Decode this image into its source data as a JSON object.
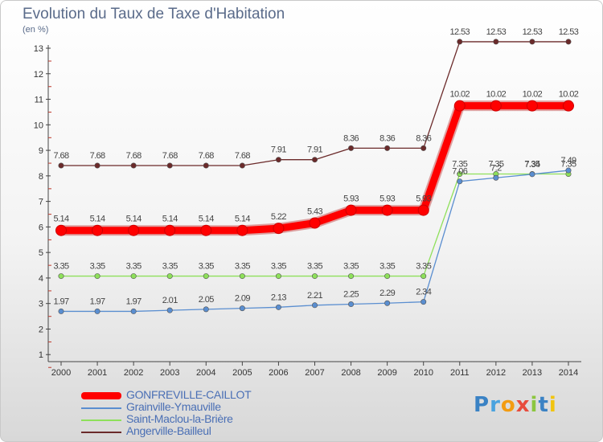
{
  "header": {
    "title": "Evolution du Taux de Taxe d'Habitation",
    "unit": "(en %)"
  },
  "logo": {
    "text": "Proxiti"
  },
  "chart_data": {
    "type": "line",
    "categories": [
      "2000",
      "2001",
      "2002",
      "2003",
      "2004",
      "2005",
      "2006",
      "2007",
      "2008",
      "2009",
      "2010",
      "2011",
      "2012",
      "2013",
      "2014"
    ],
    "ylim": [
      0,
      13
    ],
    "yticks": [
      "1",
      "2",
      "3",
      "4",
      "5",
      "6",
      "7",
      "8",
      "9",
      "10",
      "11",
      "12",
      "13"
    ],
    "grid": false,
    "legend_position": "bottom-left",
    "series": [
      {
        "name": "Angerville-Bailleul",
        "color": "#6b2a2a",
        "values": [
          7.68,
          7.68,
          7.68,
          7.68,
          7.68,
          7.68,
          7.91,
          7.91,
          8.36,
          8.36,
          8.36,
          12.53,
          12.53,
          12.53,
          12.53
        ],
        "labels": [
          "7.68",
          "7.68",
          "7.68",
          "7.68",
          "7.68",
          "7.68",
          "7.91",
          "7.91",
          "8.36",
          "8.36",
          "8.36",
          "12.53",
          "12.53",
          "12.53",
          "12.53"
        ]
      },
      {
        "name": "Saint-Maclou-la-Brière",
        "color": "#8ee05a",
        "values": [
          3.35,
          3.35,
          3.35,
          3.35,
          3.35,
          3.35,
          3.35,
          3.35,
          3.35,
          3.35,
          3.35,
          7.35,
          7.35,
          7.35,
          7.35
        ],
        "labels": [
          "3.35",
          "3.35",
          "3.35",
          "3.35",
          "3.35",
          "3.35",
          "3.35",
          "3.35",
          "3.35",
          "3.35",
          "3.35",
          "7.35",
          "7.35",
          "7.35",
          "7.35"
        ]
      },
      {
        "name": "Grainville-Ymauville",
        "color": "#5a8ed0",
        "values": [
          1.97,
          1.97,
          1.97,
          2.01,
          2.05,
          2.09,
          2.13,
          2.21,
          2.25,
          2.29,
          2.34,
          7.06,
          7.2,
          7.34,
          7.49
        ],
        "labels": [
          "1.97",
          "1.97",
          "1.97",
          "2.01",
          "2.05",
          "2.09",
          "2.13",
          "2.21",
          "2.25",
          "2.29",
          "2.34",
          "7.06",
          "7.2",
          "7.34",
          "7.49"
        ]
      },
      {
        "name": "GONFREVILLE-CAILLOT",
        "color": "#ff0000",
        "values": [
          5.14,
          5.14,
          5.14,
          5.14,
          5.14,
          5.14,
          5.22,
          5.43,
          5.93,
          5.93,
          5.93,
          10.02,
          10.02,
          10.02,
          10.02
        ],
        "labels": [
          "5.14",
          "5.14",
          "5.14",
          "5.14",
          "5.14",
          "5.14",
          "5.22",
          "5.43",
          "5.93",
          "5.93",
          "5.93",
          "10.02",
          "10.02",
          "10.02",
          "10.02"
        ]
      }
    ]
  }
}
